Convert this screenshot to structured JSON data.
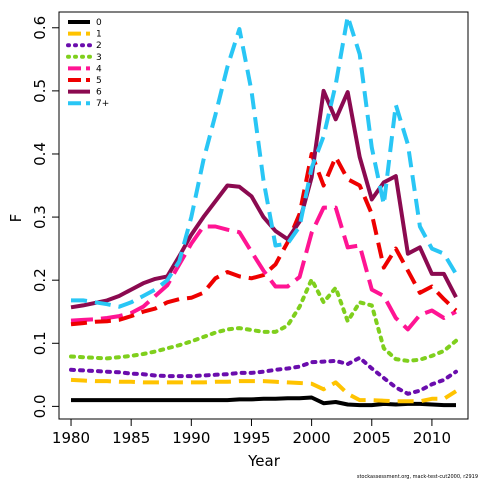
{
  "chart_data": {
    "type": "line",
    "title": "",
    "xlabel": "Year",
    "ylabel": "F",
    "xlim": [
      1979,
      2013
    ],
    "ylim": [
      -0.02,
      0.625
    ],
    "x_ticks": [
      1980,
      1985,
      1990,
      1995,
      2000,
      2005,
      2010
    ],
    "x_tick_labels": [
      "1980",
      "1985",
      "1990",
      "1995",
      "2000",
      "2005",
      "2010"
    ],
    "y_ticks": [
      0.0,
      0.1,
      0.2,
      0.3,
      0.4,
      0.5,
      0.6
    ],
    "y_tick_labels": [
      "0.0",
      "0.1",
      "0.2",
      "0.3",
      "0.4",
      "0.5",
      "0.6"
    ],
    "grid": false,
    "legend_position": "top-left",
    "caption": "stockassessment.org, mack-test-cut2000, r2919",
    "x": [
      1980,
      1981,
      1982,
      1983,
      1984,
      1985,
      1986,
      1987,
      1988,
      1989,
      1990,
      1991,
      1992,
      1993,
      1994,
      1995,
      1996,
      1997,
      1998,
      1999,
      2000,
      2001,
      2002,
      2003,
      2004,
      2005,
      2006,
      2007,
      2008,
      2009,
      2010,
      2011,
      2012
    ],
    "series": [
      {
        "name": "0",
        "color": "#000000",
        "dash": "solid",
        "values": [
          0.01,
          0.01,
          0.01,
          0.01,
          0.01,
          0.01,
          0.01,
          0.01,
          0.01,
          0.01,
          0.01,
          0.01,
          0.01,
          0.01,
          0.011,
          0.011,
          0.012,
          0.012,
          0.013,
          0.013,
          0.014,
          0.005,
          0.007,
          0.003,
          0.002,
          0.002,
          0.004,
          0.003,
          0.004,
          0.004,
          0.003,
          0.002,
          0.002
        ]
      },
      {
        "name": "1",
        "color": "#FFC300",
        "dash": "dash",
        "values": [
          0.042,
          0.041,
          0.04,
          0.04,
          0.039,
          0.039,
          0.038,
          0.038,
          0.038,
          0.038,
          0.038,
          0.038,
          0.039,
          0.039,
          0.04,
          0.04,
          0.04,
          0.039,
          0.038,
          0.037,
          0.036,
          0.027,
          0.038,
          0.02,
          0.01,
          0.01,
          0.009,
          0.008,
          0.008,
          0.008,
          0.012,
          0.012,
          0.024
        ]
      },
      {
        "name": "2",
        "color": "#6A0DAD",
        "dash": "dot",
        "values": [
          0.058,
          0.057,
          0.056,
          0.055,
          0.054,
          0.052,
          0.051,
          0.049,
          0.048,
          0.048,
          0.048,
          0.049,
          0.05,
          0.051,
          0.053,
          0.053,
          0.055,
          0.058,
          0.06,
          0.063,
          0.07,
          0.071,
          0.072,
          0.067,
          0.077,
          0.06,
          0.045,
          0.03,
          0.02,
          0.025,
          0.035,
          0.042,
          0.055
        ]
      },
      {
        "name": "3",
        "color": "#7FCF1D",
        "dash": "dot",
        "values": [
          0.079,
          0.078,
          0.077,
          0.076,
          0.078,
          0.08,
          0.083,
          0.087,
          0.092,
          0.097,
          0.103,
          0.11,
          0.117,
          0.122,
          0.124,
          0.121,
          0.118,
          0.118,
          0.128,
          0.158,
          0.201,
          0.165,
          0.188,
          0.135,
          0.165,
          0.16,
          0.092,
          0.075,
          0.072,
          0.074,
          0.08,
          0.088,
          0.104
        ]
      },
      {
        "name": "4",
        "color": "#FF1493",
        "dash": "longdash",
        "values": [
          0.136,
          0.137,
          0.138,
          0.14,
          0.143,
          0.148,
          0.158,
          0.175,
          0.192,
          0.225,
          0.258,
          0.285,
          0.285,
          0.28,
          0.276,
          0.245,
          0.215,
          0.19,
          0.19,
          0.205,
          0.275,
          0.315,
          0.315,
          0.252,
          0.255,
          0.185,
          0.175,
          0.14,
          0.122,
          0.145,
          0.152,
          0.14,
          0.15
        ]
      },
      {
        "name": "5",
        "color": "#EE0000",
        "dash": "dash",
        "values": [
          0.13,
          0.132,
          0.134,
          0.135,
          0.137,
          0.143,
          0.15,
          0.155,
          0.165,
          0.17,
          0.172,
          0.18,
          0.203,
          0.213,
          0.206,
          0.203,
          0.208,
          0.225,
          0.26,
          0.305,
          0.4,
          0.35,
          0.395,
          0.36,
          0.35,
          0.305,
          0.22,
          0.25,
          0.215,
          0.18,
          0.19,
          0.17,
          0.152
        ]
      },
      {
        "name": "6",
        "color": "#8B0A50",
        "dash": "solid",
        "values": [
          0.157,
          0.16,
          0.164,
          0.168,
          0.175,
          0.185,
          0.195,
          0.202,
          0.206,
          0.238,
          0.272,
          0.3,
          0.325,
          0.35,
          0.348,
          0.333,
          0.3,
          0.278,
          0.265,
          0.293,
          0.363,
          0.5,
          0.455,
          0.498,
          0.395,
          0.328,
          0.355,
          0.365,
          0.242,
          0.252,
          0.21,
          0.21,
          0.173
        ]
      },
      {
        "name": "7+",
        "color": "#29C6F5",
        "dash": "dash",
        "values": [
          0.168,
          0.168,
          0.165,
          0.162,
          0.158,
          0.165,
          0.175,
          0.185,
          0.2,
          0.23,
          0.3,
          0.39,
          0.462,
          0.538,
          0.598,
          0.5,
          0.358,
          0.255,
          0.258,
          0.285,
          0.378,
          0.428,
          0.51,
          0.618,
          0.558,
          0.41,
          0.32,
          0.478,
          0.415,
          0.285,
          0.25,
          0.242,
          0.21
        ]
      }
    ]
  }
}
